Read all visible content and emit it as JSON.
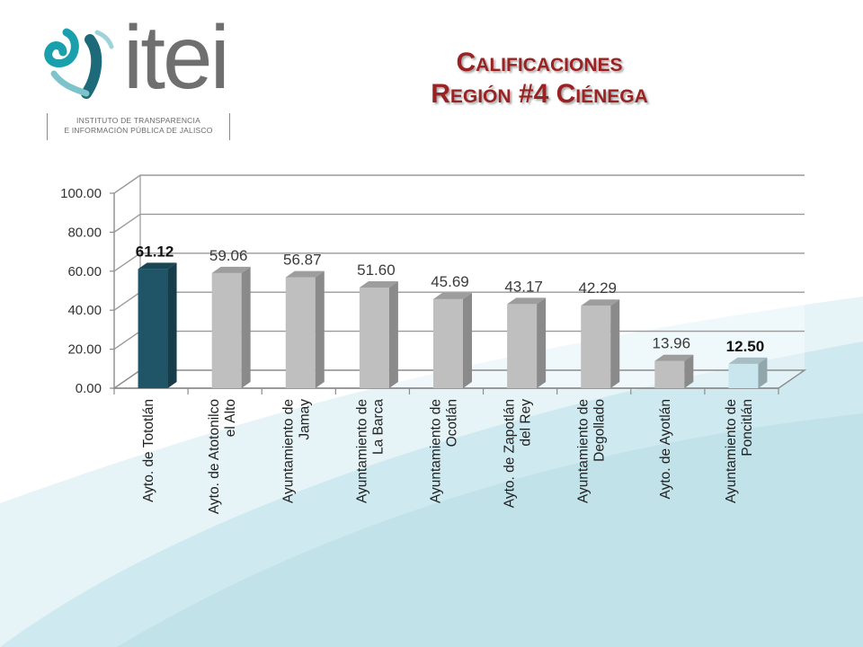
{
  "header": {
    "logo_word": "itei",
    "logo_sub_line1": "INSTITUTO DE TRANSPARENCIA",
    "logo_sub_line2": "E INFORMACIÓN PÚBLICA DE JALISCO",
    "title_line1": "Calificaciones",
    "title_line2": "Región #4 Ciénega"
  },
  "colors": {
    "highlight_bar": "#1f5566",
    "last_bar": "#c9e6ee",
    "default_bar": "#bfbfbf",
    "title": "#9a2222",
    "background_wave": "#bde3ec"
  },
  "chart_data": {
    "type": "bar",
    "categories": [
      "Ayto. de Tototlán",
      "Ayto. de Atotonilco el Alto",
      "Ayuntamiento de Jamay",
      "Ayuntamiento de La Barca",
      "Ayuntamiento de Ocotlán",
      "Ayto. de Zapotlán del Rey",
      "Ayuntamiento de Degollado",
      "Ayto. de Ayotlán",
      "Ayuntamiento de Poncitlán"
    ],
    "category_lines": [
      [
        "Ayto. de Tototlán"
      ],
      [
        "Ayto. de Atotonilco",
        "el Alto"
      ],
      [
        "Ayuntamiento de",
        "Jamay"
      ],
      [
        "Ayuntamiento de",
        "La Barca"
      ],
      [
        "Ayuntamiento de",
        "Ocotlán"
      ],
      [
        "Ayto. de Zapotlán",
        "del Rey"
      ],
      [
        "Ayuntamiento de",
        "Degollado"
      ],
      [
        "Ayto. de Ayotlán"
      ],
      [
        "Ayuntamiento de",
        "Poncitlán"
      ]
    ],
    "values": [
      61.12,
      59.06,
      56.87,
      51.6,
      45.69,
      43.17,
      42.29,
      13.96,
      12.5
    ],
    "value_labels": [
      "61.12",
      "59.06",
      "56.87",
      "51.60",
      "45.69",
      "43.17",
      "42.29",
      "13.96",
      "12.50"
    ],
    "bold_labels": [
      true,
      false,
      false,
      false,
      false,
      false,
      false,
      false,
      true
    ],
    "y_ticks": [
      "0.00",
      "20.00",
      "40.00",
      "60.00",
      "80.00",
      "100.00"
    ],
    "ylim": [
      0,
      100
    ],
    "grid": true,
    "legend": "none",
    "title": "",
    "xlabel": "",
    "ylabel": ""
  }
}
